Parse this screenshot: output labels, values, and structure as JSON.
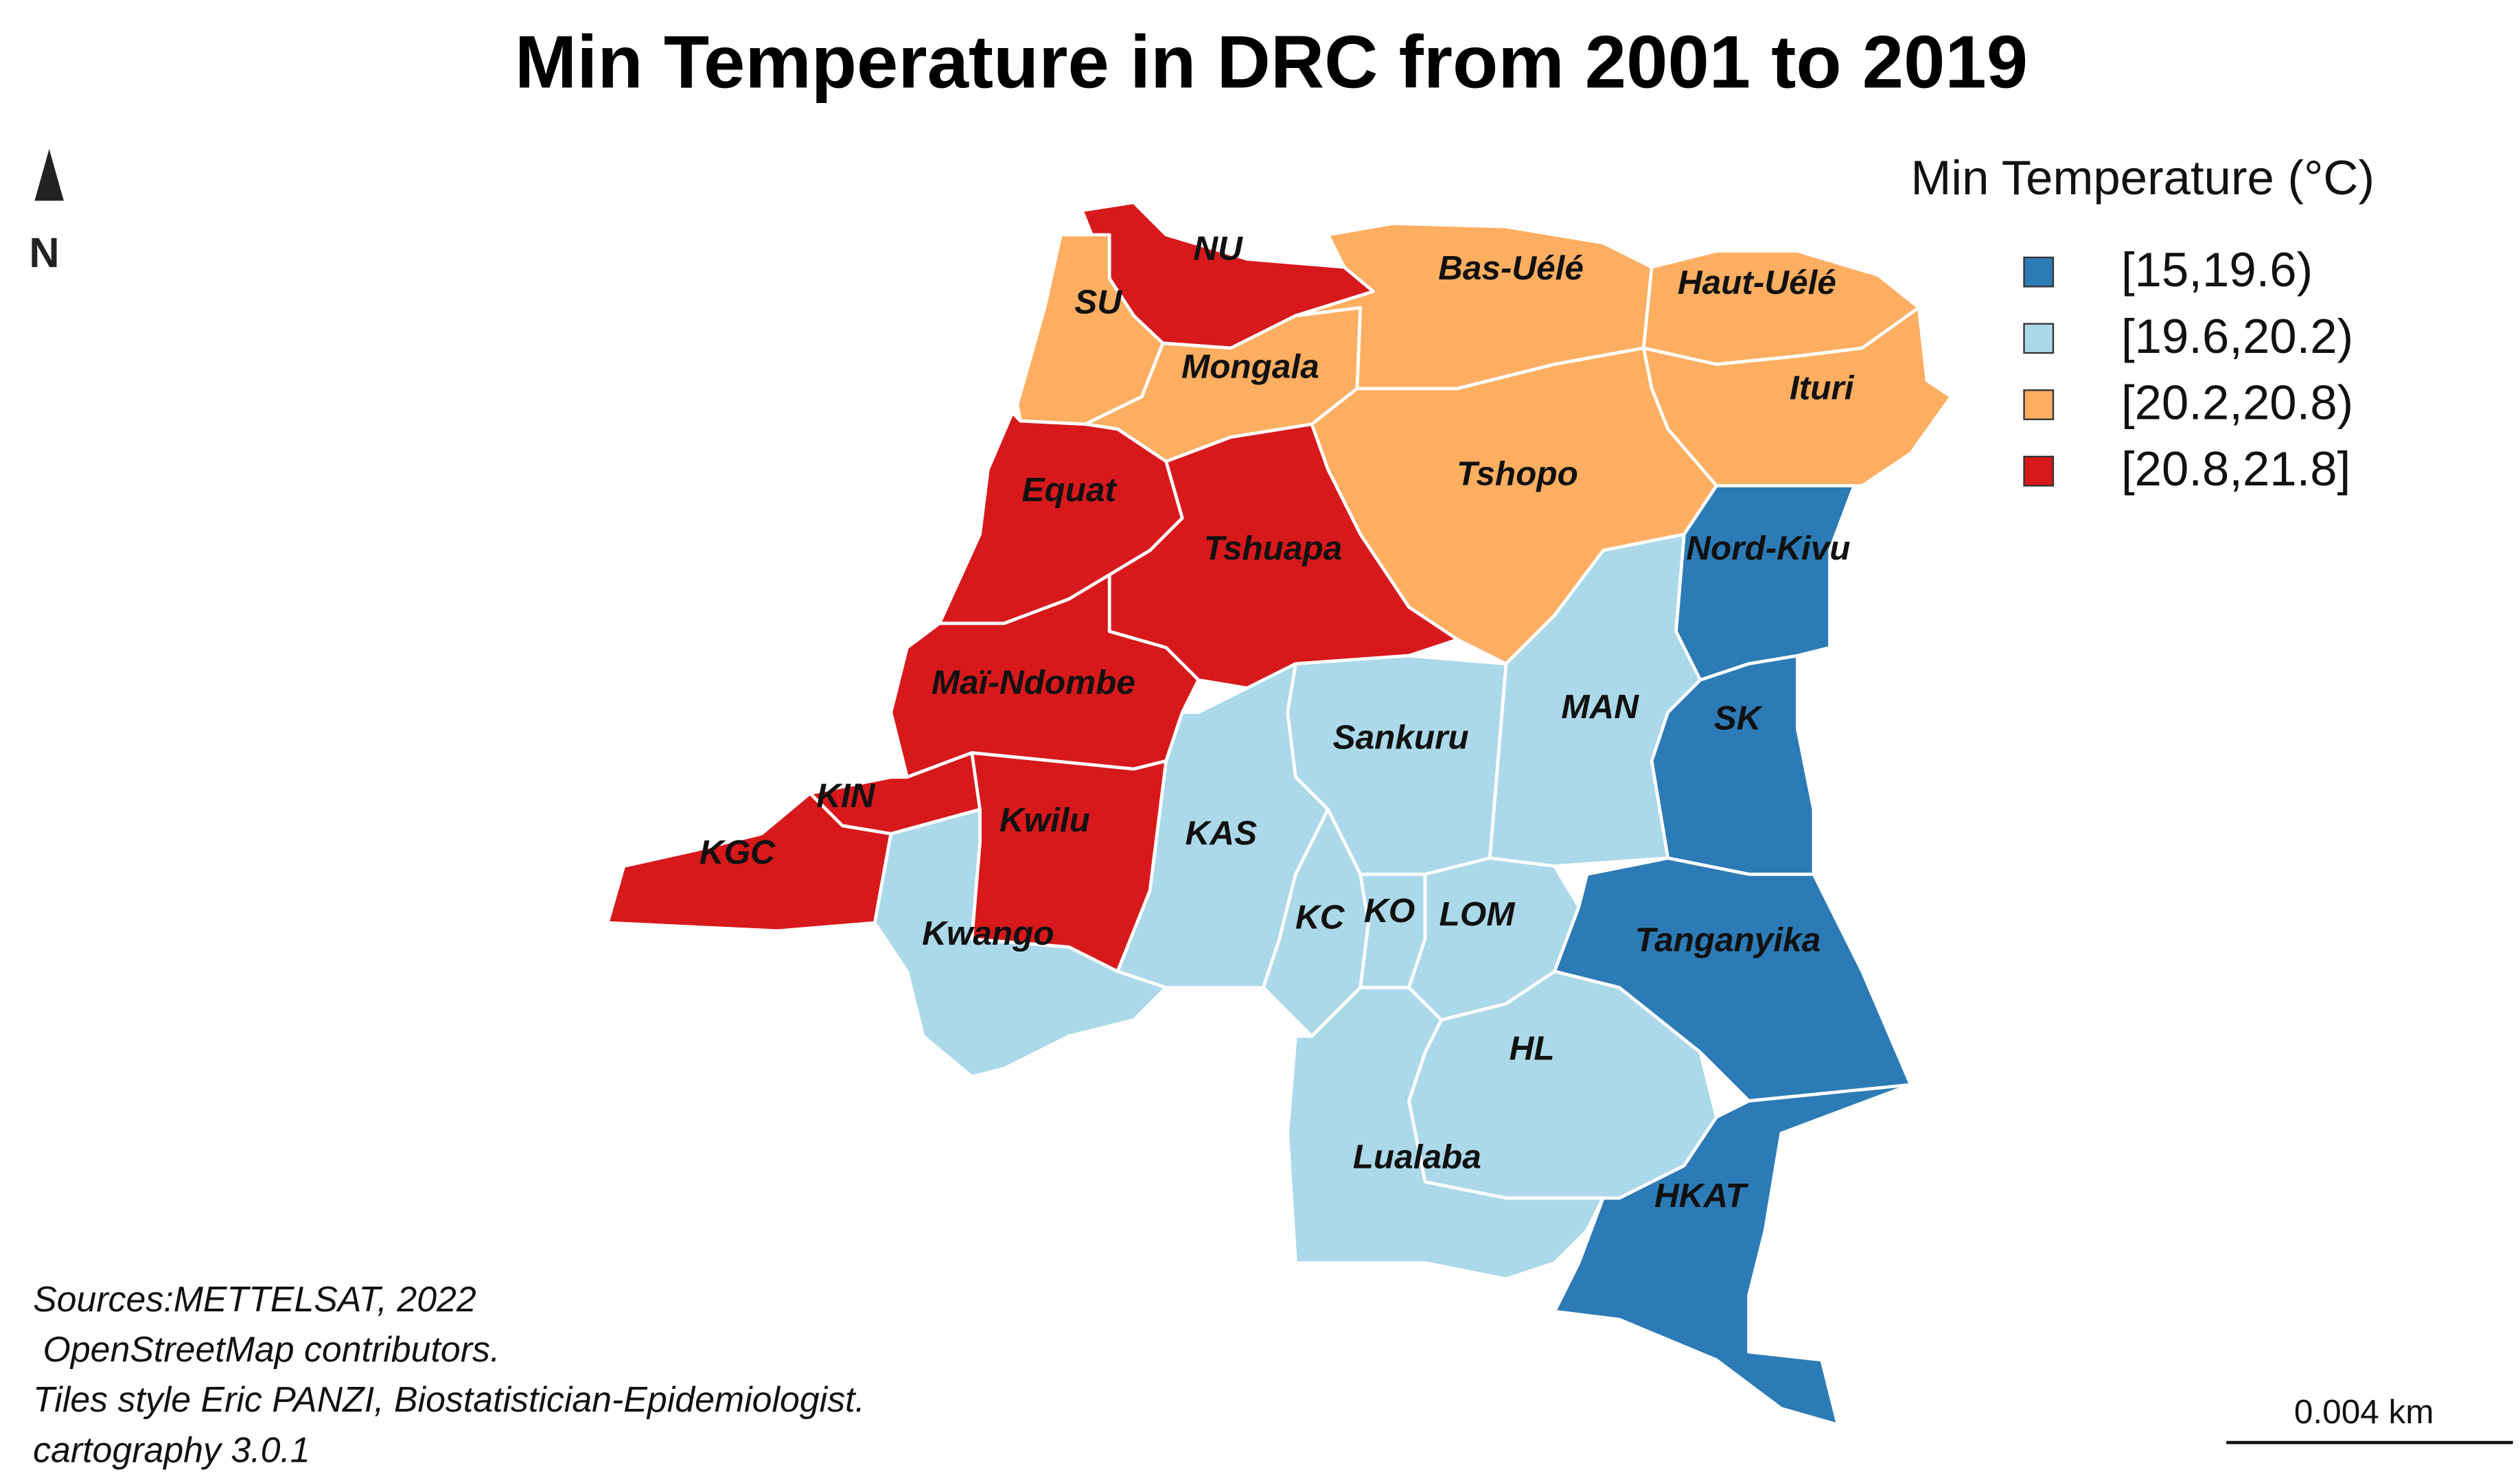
{
  "title": "Min Temperature in DRC from 2001 to 2019",
  "north": "N",
  "legend": {
    "title": "Min Temperature (°C)",
    "classes": [
      {
        "label": "[15,19.6)",
        "color": "#2c7bb6"
      },
      {
        "label": "[19.6,20.2)",
        "color": "#abd9e9"
      },
      {
        "label": "[20.2,20.8)",
        "color": "#fdae61"
      },
      {
        "label": "[20.8,21.8]",
        "color": "#d7191c"
      }
    ]
  },
  "regions": [
    {
      "label": "NU",
      "color": "#d7191c"
    },
    {
      "label": "SU",
      "color": "#fdae61"
    },
    {
      "label": "Mongala",
      "color": "#fdae61"
    },
    {
      "label": "Bas-Uélé",
      "color": "#fdae61"
    },
    {
      "label": "Haut-Uélé",
      "color": "#fdae61"
    },
    {
      "label": "Ituri",
      "color": "#fdae61"
    },
    {
      "label": "Tshopo",
      "color": "#fdae61"
    },
    {
      "label": "Equat",
      "color": "#d7191c"
    },
    {
      "label": "Tshuapa",
      "color": "#d7191c"
    },
    {
      "label": "Nord-Kivu",
      "color": "#2c7bb6"
    },
    {
      "label": "Maï-Ndombe",
      "color": "#d7191c"
    },
    {
      "label": "MAN",
      "color": "#abd9e9"
    },
    {
      "label": "SK",
      "color": "#2c7bb6"
    },
    {
      "label": "Sankuru",
      "color": "#abd9e9"
    },
    {
      "label": "KAS",
      "color": "#abd9e9"
    },
    {
      "label": "Kwilu",
      "color": "#d7191c"
    },
    {
      "label": "KIN",
      "color": "#d7191c"
    },
    {
      "label": "KGC",
      "color": "#d7191c"
    },
    {
      "label": "Kwango",
      "color": "#abd9e9"
    },
    {
      "label": "KC",
      "color": "#abd9e9"
    },
    {
      "label": "KO",
      "color": "#abd9e9"
    },
    {
      "label": "LOM",
      "color": "#abd9e9"
    },
    {
      "label": "Tanganyika",
      "color": "#2c7bb6"
    },
    {
      "label": "HL",
      "color": "#abd9e9"
    },
    {
      "label": "Lualaba",
      "color": "#abd9e9"
    },
    {
      "label": "HKAT",
      "color": "#2c7bb6"
    }
  ],
  "sources": [
    "Sources:METTELSAT, 2022",
    " OpenStreetMap contributors.",
    "Tiles style Eric PANZI, Biostatistician-Epidemiologist.",
    "cartography 3.0.1"
  ],
  "scale_bar": "0.004 km"
}
